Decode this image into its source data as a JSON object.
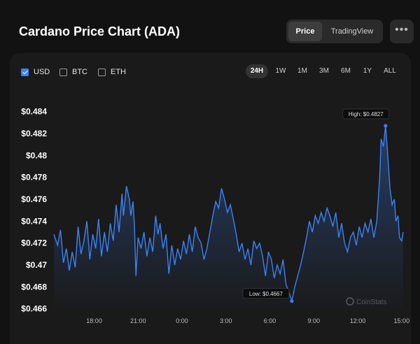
{
  "header": {
    "title": "Cardano Price Chart (ADA)",
    "tabs": [
      {
        "label": "Price",
        "active": true
      },
      {
        "label": "TradingView",
        "active": false
      }
    ],
    "more_icon": "ellipsis-icon"
  },
  "currencies": [
    {
      "label": "USD",
      "checked": true
    },
    {
      "label": "BTC",
      "checked": false
    },
    {
      "label": "ETH",
      "checked": false
    }
  ],
  "ranges": [
    {
      "label": "24H",
      "active": true
    },
    {
      "label": "1W",
      "active": false
    },
    {
      "label": "1M",
      "active": false
    },
    {
      "label": "3M",
      "active": false
    },
    {
      "label": "6M",
      "active": false
    },
    {
      "label": "1Y",
      "active": false
    },
    {
      "label": "ALL",
      "active": false
    }
  ],
  "watermark": "CoinStats",
  "colors": {
    "line": "#3b82f6",
    "bg": "#121212",
    "panel": "#1a1a1a"
  },
  "chart_data": {
    "type": "area",
    "yticks": [
      "$0.484",
      "$0.482",
      "$0.48",
      "$0.478",
      "$0.476",
      "$0.474",
      "$0.472",
      "$0.47",
      "$0.468",
      "$0.466"
    ],
    "ytick_values": [
      0.484,
      0.482,
      0.48,
      0.478,
      0.476,
      0.474,
      0.472,
      0.47,
      0.468,
      0.466
    ],
    "xticks": [
      "18:00",
      "21:00",
      "0:00",
      "3:00",
      "6:00",
      "9:00",
      "12:00",
      "15:00"
    ],
    "xtick_values": [
      18,
      21,
      24,
      27,
      30,
      33,
      36,
      39
    ],
    "ylim": [
      0.4656,
      0.4848
    ],
    "xlim": [
      15.2,
      39.2
    ],
    "annotations": [
      {
        "label": "High: $0.4827",
        "x": 37.9,
        "y": 0.4827
      },
      {
        "label": "Low: $0.4667",
        "x": 31.5,
        "y": 0.4667
      }
    ],
    "series": [
      {
        "values": [
          [
            15.25,
            0.4728
          ],
          [
            15.5,
            0.4718
          ],
          [
            15.7,
            0.4732
          ],
          [
            15.9,
            0.4702
          ],
          [
            16.1,
            0.4715
          ],
          [
            16.3,
            0.4695
          ],
          [
            16.5,
            0.4712
          ],
          [
            16.7,
            0.4698
          ],
          [
            16.9,
            0.4735
          ],
          [
            17.1,
            0.471
          ],
          [
            17.3,
            0.4722
          ],
          [
            17.5,
            0.474
          ],
          [
            17.7,
            0.4705
          ],
          [
            17.9,
            0.4728
          ],
          [
            18.1,
            0.4715
          ],
          [
            18.3,
            0.4742
          ],
          [
            18.5,
            0.4708
          ],
          [
            18.7,
            0.473
          ],
          [
            18.9,
            0.4712
          ],
          [
            19.1,
            0.4738
          ],
          [
            19.3,
            0.4722
          ],
          [
            19.5,
            0.4755
          ],
          [
            19.7,
            0.473
          ],
          [
            19.9,
            0.4765
          ],
          [
            20.0,
            0.4745
          ],
          [
            20.2,
            0.4772
          ],
          [
            20.4,
            0.476
          ],
          [
            20.5,
            0.4745
          ],
          [
            20.65,
            0.4758
          ],
          [
            20.75,
            0.4735
          ],
          [
            20.85,
            0.469
          ],
          [
            21.0,
            0.4725
          ],
          [
            21.2,
            0.4715
          ],
          [
            21.4,
            0.473
          ],
          [
            21.6,
            0.4708
          ],
          [
            21.8,
            0.4725
          ],
          [
            22.0,
            0.4712
          ],
          [
            22.2,
            0.4745
          ],
          [
            22.35,
            0.4728
          ],
          [
            22.5,
            0.4738
          ],
          [
            22.7,
            0.4715
          ],
          [
            22.9,
            0.4728
          ],
          [
            23.1,
            0.4692
          ],
          [
            23.3,
            0.4718
          ],
          [
            23.5,
            0.47
          ],
          [
            23.7,
            0.4715
          ],
          [
            23.9,
            0.4705
          ],
          [
            24.1,
            0.4722
          ],
          [
            24.3,
            0.471
          ],
          [
            24.5,
            0.4728
          ],
          [
            24.7,
            0.4712
          ],
          [
            24.9,
            0.4735
          ],
          [
            25.1,
            0.4725
          ],
          [
            25.3,
            0.472
          ],
          [
            25.5,
            0.4705
          ],
          [
            25.7,
            0.4715
          ],
          [
            25.9,
            0.473
          ],
          [
            26.1,
            0.4745
          ],
          [
            26.3,
            0.4758
          ],
          [
            26.5,
            0.4752
          ],
          [
            26.7,
            0.477
          ],
          [
            26.9,
            0.476
          ],
          [
            27.1,
            0.4748
          ],
          [
            27.3,
            0.4755
          ],
          [
            27.5,
            0.4742
          ],
          [
            27.7,
            0.4728
          ],
          [
            27.9,
            0.4712
          ],
          [
            28.1,
            0.472
          ],
          [
            28.3,
            0.4705
          ],
          [
            28.5,
            0.4715
          ],
          [
            28.7,
            0.47
          ],
          [
            28.9,
            0.4722
          ],
          [
            29.1,
            0.4715
          ],
          [
            29.3,
            0.472
          ],
          [
            29.5,
            0.4708
          ],
          [
            29.7,
            0.469
          ],
          [
            29.9,
            0.4712
          ],
          [
            30.1,
            0.4705
          ],
          [
            30.3,
            0.4688
          ],
          [
            30.5,
            0.47
          ],
          [
            30.7,
            0.4692
          ],
          [
            30.9,
            0.4705
          ],
          [
            31.1,
            0.4682
          ],
          [
            31.3,
            0.4675
          ],
          [
            31.5,
            0.4667
          ],
          [
            31.7,
            0.468
          ],
          [
            31.9,
            0.469
          ],
          [
            32.1,
            0.47
          ],
          [
            32.3,
            0.4712
          ],
          [
            32.5,
            0.4725
          ],
          [
            32.7,
            0.474
          ],
          [
            32.9,
            0.473
          ],
          [
            33.1,
            0.4745
          ],
          [
            33.3,
            0.4738
          ],
          [
            33.5,
            0.4748
          ],
          [
            33.7,
            0.474
          ],
          [
            33.9,
            0.4752
          ],
          [
            34.1,
            0.4745
          ],
          [
            34.3,
            0.4735
          ],
          [
            34.5,
            0.4748
          ],
          [
            34.7,
            0.4725
          ],
          [
            34.9,
            0.4738
          ],
          [
            35.1,
            0.472
          ],
          [
            35.3,
            0.4712
          ],
          [
            35.5,
            0.4725
          ],
          [
            35.7,
            0.473
          ],
          [
            35.9,
            0.4718
          ],
          [
            36.1,
            0.4735
          ],
          [
            36.3,
            0.4725
          ],
          [
            36.5,
            0.4738
          ],
          [
            36.7,
            0.473
          ],
          [
            36.9,
            0.4742
          ],
          [
            37.1,
            0.4725
          ],
          [
            37.3,
            0.474
          ],
          [
            37.5,
            0.478
          ],
          [
            37.6,
            0.4815
          ],
          [
            37.75,
            0.4808
          ],
          [
            37.9,
            0.4827
          ],
          [
            38.0,
            0.481
          ],
          [
            38.1,
            0.479
          ],
          [
            38.2,
            0.477
          ],
          [
            38.35,
            0.4755
          ],
          [
            38.5,
            0.476
          ],
          [
            38.6,
            0.474
          ],
          [
            38.75,
            0.4745
          ],
          [
            38.85,
            0.4725
          ],
          [
            39.0,
            0.4722
          ],
          [
            39.1,
            0.473
          ]
        ]
      }
    ]
  }
}
